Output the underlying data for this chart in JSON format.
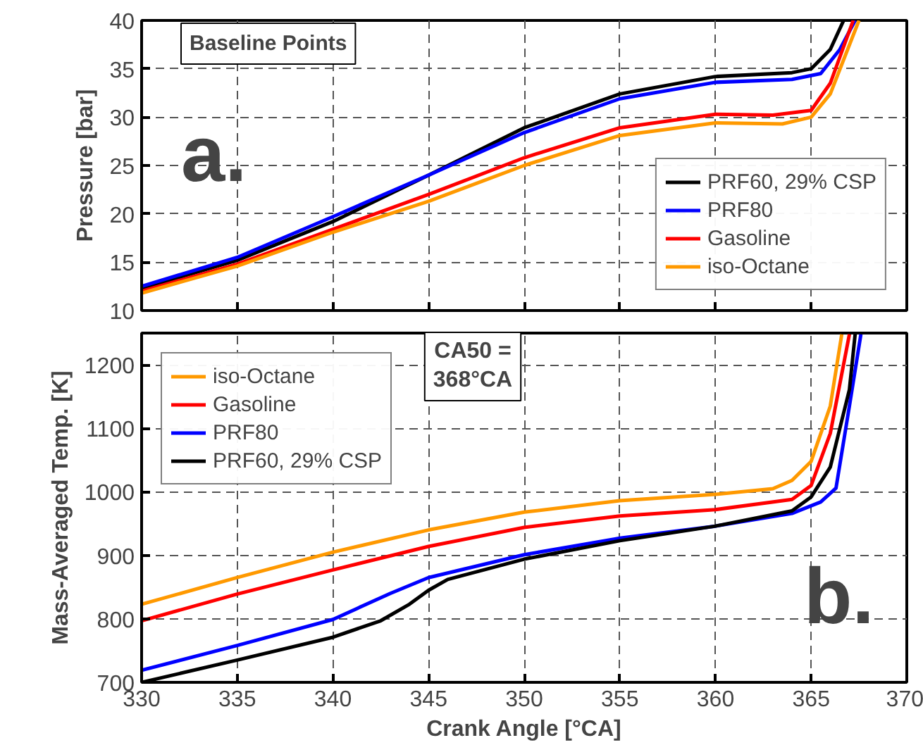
{
  "chart_data": [
    {
      "type": "line",
      "ylabel": "Pressure [bar]",
      "xlim": [
        330,
        370
      ],
      "xticks": [
        330,
        335,
        340,
        345,
        350,
        355,
        360,
        365,
        370
      ],
      "ylim": [
        10,
        40
      ],
      "yticks": [
        10,
        15,
        20,
        25,
        30,
        35,
        40
      ],
      "tick_labels": "y",
      "grid": true,
      "legend": "bottom right",
      "line_style": "solid",
      "annotations": [
        "Baseline Points",
        "a."
      ],
      "series": [
        {
          "name": "PRF60, 29% CSP",
          "color": "#000000",
          "x": [
            330,
            335,
            340,
            345,
            350,
            355,
            360,
            364,
            365,
            366,
            366.7
          ],
          "values": [
            12.3,
            15.2,
            19.2,
            24.0,
            28.9,
            32.4,
            34.2,
            34.6,
            35.0,
            37.0,
            40.0
          ]
        },
        {
          "name": "PRF80",
          "color": "#0000ff",
          "x": [
            330,
            335,
            340,
            345,
            350,
            355,
            360,
            364,
            365.5,
            366.5,
            367.3
          ],
          "values": [
            12.5,
            15.5,
            19.7,
            24.0,
            28.4,
            31.9,
            33.6,
            33.9,
            34.5,
            37.0,
            40.0
          ]
        },
        {
          "name": "Gasoline",
          "color": "#ff0000",
          "x": [
            330,
            335,
            340,
            345,
            350,
            355,
            360,
            363,
            365,
            366,
            367.2
          ],
          "values": [
            12.0,
            14.8,
            18.4,
            22.0,
            25.8,
            28.9,
            30.3,
            30.2,
            30.7,
            33.5,
            40.0
          ]
        },
        {
          "name": "iso-Octane",
          "color": "#ff9900",
          "x": [
            330,
            335,
            340,
            345,
            350,
            355,
            360,
            363.5,
            365,
            366,
            367.5
          ],
          "values": [
            11.8,
            14.6,
            18.1,
            21.3,
            25.0,
            28.1,
            29.4,
            29.3,
            30.0,
            32.4,
            40.0
          ]
        }
      ]
    },
    {
      "type": "line",
      "xlabel": "Crank Angle [°CA]",
      "ylabel": "Mass-Averaged Temp. [K]",
      "xlim": [
        330,
        370
      ],
      "xticks": [
        330,
        335,
        340,
        345,
        350,
        355,
        360,
        365,
        370
      ],
      "ylim": [
        700,
        1250
      ],
      "yticks": [
        700,
        800,
        900,
        1000,
        1100,
        1200
      ],
      "grid": true,
      "legend": "top left",
      "line_style": "solid",
      "annotations": [
        "CA50 =\n368°CA",
        "b."
      ],
      "series": [
        {
          "name": "iso-Octane",
          "color": "#ff9900",
          "x": [
            330,
            335,
            340,
            345,
            350,
            355,
            360,
            363,
            364,
            365,
            366,
            366.6
          ],
          "values": [
            823,
            865,
            905,
            940,
            968,
            986,
            996,
            1005,
            1018,
            1048,
            1135,
            1248
          ]
        },
        {
          "name": "Gasoline",
          "color": "#ff0000",
          "x": [
            330,
            335,
            340,
            345,
            350,
            355,
            360,
            364,
            365,
            366,
            367
          ],
          "values": [
            797,
            839,
            877,
            914,
            944,
            962,
            972,
            988,
            1010,
            1092,
            1248
          ]
        },
        {
          "name": "PRF80",
          "color": "#0000ff",
          "x": [
            330,
            335,
            340,
            343,
            345,
            350,
            355,
            360,
            364,
            365.5,
            366.3,
            367,
            367.6
          ],
          "values": [
            719,
            758,
            799,
            840,
            865,
            901,
            927,
            946,
            966,
            984,
            1006,
            1135,
            1248
          ]
        },
        {
          "name": "PRF60, 29% CSP",
          "color": "#000000",
          "x": [
            330,
            335,
            340,
            342.5,
            344,
            345,
            346,
            350,
            355,
            360,
            364,
            365,
            366,
            367,
            367.3
          ],
          "values": [
            700,
            735,
            771,
            797,
            823,
            845,
            862,
            894,
            923,
            946,
            970,
            992,
            1039,
            1161,
            1248
          ]
        }
      ]
    }
  ]
}
